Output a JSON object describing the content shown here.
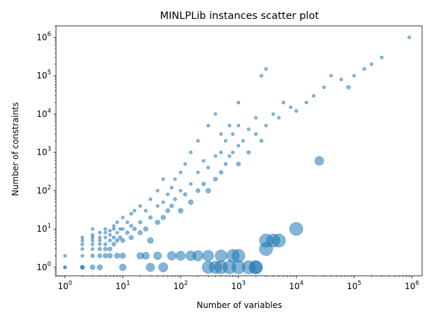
{
  "chart_data": {
    "type": "scatter",
    "title": "MINLPLib instances scatter plot",
    "xlabel": "Number of variables",
    "ylabel": "Number of constraints",
    "xscale": "log",
    "yscale": "log",
    "xlim": [
      0.7,
      1500000
    ],
    "ylim": [
      0.6,
      2000000
    ],
    "x_ticks": [
      {
        "base": "10",
        "exp": "0",
        "value": 1
      },
      {
        "base": "10",
        "exp": "1",
        "value": 10
      },
      {
        "base": "10",
        "exp": "2",
        "value": 100
      },
      {
        "base": "10",
        "exp": "3",
        "value": 1000
      },
      {
        "base": "10",
        "exp": "4",
        "value": 10000
      },
      {
        "base": "10",
        "exp": "5",
        "value": 100000
      },
      {
        "base": "10",
        "exp": "6",
        "value": 1000000
      }
    ],
    "y_ticks": [
      {
        "base": "10",
        "exp": "0",
        "value": 1
      },
      {
        "base": "10",
        "exp": "1",
        "value": 10
      },
      {
        "base": "10",
        "exp": "2",
        "value": 100
      },
      {
        "base": "10",
        "exp": "3",
        "value": 1000
      },
      {
        "base": "10",
        "exp": "4",
        "value": 10000
      },
      {
        "base": "10",
        "exp": "5",
        "value": 100000
      },
      {
        "base": "10",
        "exp": "6",
        "value": 1000000
      }
    ],
    "color": "#1f77b4",
    "alpha": 0.55,
    "marker_size": "decreases as x/y ratio grows",
    "grid": false,
    "legend": "none",
    "points": [
      [
        1,
        1
      ],
      [
        1,
        1
      ],
      [
        1,
        2
      ],
      [
        2,
        1
      ],
      [
        2,
        1
      ],
      [
        2,
        2
      ],
      [
        2,
        3
      ],
      [
        2,
        4
      ],
      [
        2,
        5
      ],
      [
        2,
        6
      ],
      [
        3,
        1
      ],
      [
        3,
        2
      ],
      [
        3,
        3
      ],
      [
        3,
        4
      ],
      [
        3,
        5
      ],
      [
        3,
        6
      ],
      [
        3,
        7
      ],
      [
        3,
        10
      ],
      [
        4,
        1
      ],
      [
        4,
        2
      ],
      [
        4,
        3
      ],
      [
        4,
        4
      ],
      [
        4,
        5
      ],
      [
        4,
        6
      ],
      [
        4,
        8
      ],
      [
        5,
        2
      ],
      [
        5,
        3
      ],
      [
        5,
        4
      ],
      [
        5,
        6
      ],
      [
        5,
        8
      ],
      [
        5,
        10
      ],
      [
        6,
        2
      ],
      [
        6,
        3
      ],
      [
        6,
        5
      ],
      [
        6,
        7
      ],
      [
        6,
        9
      ],
      [
        7,
        4
      ],
      [
        7,
        6
      ],
      [
        7,
        10
      ],
      [
        7,
        12
      ],
      [
        8,
        2
      ],
      [
        8,
        5
      ],
      [
        8,
        8
      ],
      [
        8,
        15
      ],
      [
        9,
        6
      ],
      [
        9,
        10
      ],
      [
        10,
        1
      ],
      [
        10,
        2
      ],
      [
        10,
        5
      ],
      [
        10,
        10
      ],
      [
        10,
        20
      ],
      [
        12,
        8
      ],
      [
        12,
        15
      ],
      [
        14,
        6
      ],
      [
        14,
        12
      ],
      [
        14,
        25
      ],
      [
        16,
        10
      ],
      [
        16,
        30
      ],
      [
        20,
        2
      ],
      [
        20,
        8
      ],
      [
        20,
        15
      ],
      [
        20,
        40
      ],
      [
        25,
        2
      ],
      [
        25,
        10
      ],
      [
        25,
        30
      ],
      [
        30,
        1
      ],
      [
        30,
        5
      ],
      [
        30,
        20
      ],
      [
        30,
        60
      ],
      [
        40,
        2
      ],
      [
        40,
        15
      ],
      [
        40,
        40
      ],
      [
        40,
        100
      ],
      [
        50,
        1
      ],
      [
        50,
        20
      ],
      [
        50,
        50
      ],
      [
        50,
        200
      ],
      [
        60,
        30
      ],
      [
        60,
        80
      ],
      [
        70,
        2
      ],
      [
        70,
        40
      ],
      [
        70,
        120
      ],
      [
        80,
        60
      ],
      [
        80,
        200
      ],
      [
        100,
        2
      ],
      [
        100,
        30
      ],
      [
        100,
        100
      ],
      [
        100,
        300
      ],
      [
        120,
        80
      ],
      [
        120,
        500
      ],
      [
        150,
        2
      ],
      [
        150,
        50
      ],
      [
        150,
        150
      ],
      [
        150,
        1000
      ],
      [
        200,
        2
      ],
      [
        200,
        100
      ],
      [
        200,
        300
      ],
      [
        200,
        2000
      ],
      [
        250,
        150
      ],
      [
        250,
        600
      ],
      [
        300,
        1
      ],
      [
        300,
        2
      ],
      [
        300,
        100
      ],
      [
        300,
        400
      ],
      [
        300,
        5000
      ],
      [
        400,
        1
      ],
      [
        400,
        200
      ],
      [
        400,
        800
      ],
      [
        400,
        10000
      ],
      [
        500,
        1
      ],
      [
        500,
        2
      ],
      [
        500,
        300
      ],
      [
        500,
        1000
      ],
      [
        500,
        3000
      ],
      [
        600,
        500
      ],
      [
        600,
        2000
      ],
      [
        700,
        1
      ],
      [
        700,
        800
      ],
      [
        700,
        5000
      ],
      [
        800,
        2
      ],
      [
        800,
        1000
      ],
      [
        800,
        3000
      ],
      [
        1000,
        1
      ],
      [
        1000,
        2
      ],
      [
        1000,
        500
      ],
      [
        1000,
        1500
      ],
      [
        1000,
        5000
      ],
      [
        1000,
        20000
      ],
      [
        1200,
        2000
      ],
      [
        1500,
        1
      ],
      [
        1500,
        1000
      ],
      [
        1500,
        4000
      ],
      [
        2000,
        1
      ],
      [
        2000,
        1
      ],
      [
        2000,
        3000
      ],
      [
        2000,
        8000
      ],
      [
        2500,
        100000
      ],
      [
        2500,
        2000
      ],
      [
        3000,
        5
      ],
      [
        3000,
        3
      ],
      [
        3000,
        150000
      ],
      [
        3000,
        5000
      ],
      [
        4000,
        5
      ],
      [
        4000,
        10000
      ],
      [
        5000,
        5
      ],
      [
        5000,
        8000
      ],
      [
        6000,
        20000
      ],
      [
        8000,
        15000
      ],
      [
        10000,
        10
      ],
      [
        10000,
        12000
      ],
      [
        15000,
        20000
      ],
      [
        20000,
        30000
      ],
      [
        25000,
        600
      ],
      [
        30000,
        50000
      ],
      [
        40000,
        100000
      ],
      [
        60000,
        80000
      ],
      [
        80000,
        50000
      ],
      [
        100000,
        100000
      ],
      [
        150000,
        150000
      ],
      [
        200000,
        200000
      ],
      [
        300000,
        300000
      ],
      [
        900000,
        1000000
      ]
    ]
  }
}
